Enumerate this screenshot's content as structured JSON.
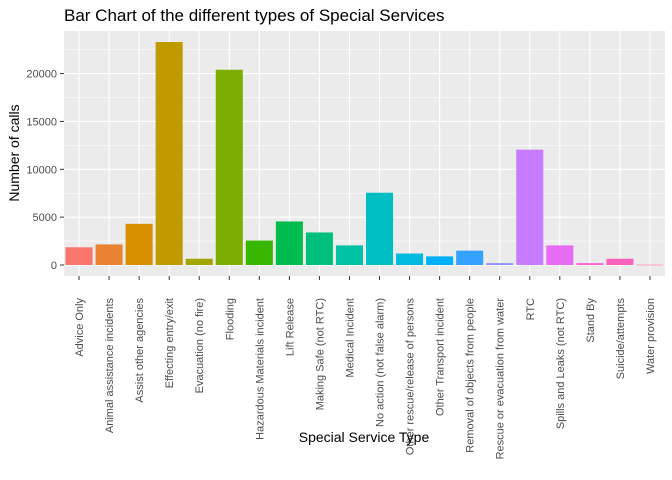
{
  "chart_data": {
    "type": "bar",
    "title": "Bar Chart of the different types of Special Services",
    "xlabel": "Special Service Type",
    "ylabel": "Number of calls",
    "ylim": [
      -1150,
      24450
    ],
    "yticks": [
      0,
      5000,
      10000,
      15000,
      20000
    ],
    "ytick_labels": [
      "0",
      "5000",
      "10000",
      "15000",
      "20000"
    ],
    "grid": true,
    "legend": "none",
    "categories": [
      "Advice Only",
      "Animal assistance incidents",
      "Assist other agencies",
      "Effecting entry/exit",
      "Evacuation (no fire)",
      "Flooding",
      "Hazardous Materials incident",
      "Lift Release",
      "Making Safe (not RTC)",
      "Medical Incident",
      "No action (not false alarm)",
      "Other rescue/release of persons",
      "Other Transport incident",
      "Removal of objects from people",
      "Rescue or evacuation from water",
      "RTC",
      "Spills and Leaks (not RTC)",
      "Stand By",
      "Suicide/attempts",
      "Water provision"
    ],
    "values": [
      1850,
      2150,
      4300,
      23300,
      650,
      20400,
      2550,
      4550,
      3400,
      2050,
      7550,
      1200,
      900,
      1500,
      200,
      12050,
      2050,
      200,
      650,
      30
    ],
    "colors": [
      "#F8766D",
      "#EA8331",
      "#D89000",
      "#C09B00",
      "#A3A500",
      "#7CAE00",
      "#39B600",
      "#00BB4E",
      "#00BF7D",
      "#00C1A3",
      "#00BFC4",
      "#00BAE0",
      "#00B0F6",
      "#35A2FF",
      "#9590FF",
      "#C77CFF",
      "#E76BF3",
      "#FA62DB",
      "#FF62BC",
      "#FF6A98"
    ]
  }
}
